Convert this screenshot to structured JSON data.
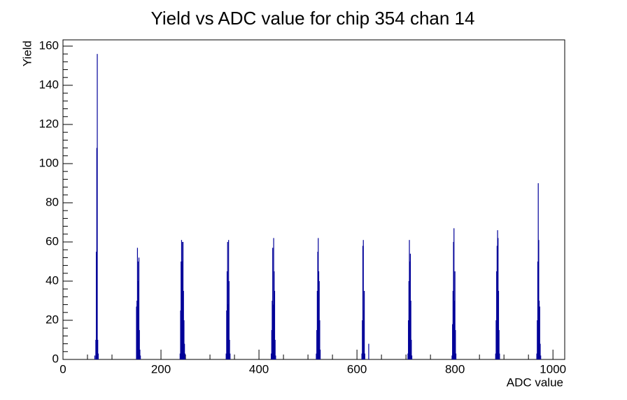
{
  "chart_data": {
    "type": "histogram",
    "title": "Yield vs ADC value for chip 354 chan 14",
    "x_label": "ADC value",
    "y_label": "Yield",
    "color": "#000099",
    "xlim": [
      0,
      1024
    ],
    "ylim": [
      0,
      163.2
    ],
    "xticks": [
      0,
      200,
      400,
      600,
      800,
      1000
    ],
    "yticks": [
      0,
      20,
      40,
      60,
      80,
      100,
      120,
      140,
      160
    ],
    "x": [
      65,
      67,
      68,
      69,
      70,
      71,
      72,
      150,
      151,
      152,
      153,
      154,
      155,
      156,
      157,
      158,
      239,
      240,
      241,
      242,
      243,
      244,
      245,
      246,
      247,
      248,
      249,
      333,
      334,
      335,
      336,
      337,
      338,
      339,
      340,
      341,
      425,
      426,
      427,
      428,
      429,
      430,
      431,
      432,
      433,
      434,
      517,
      518,
      519,
      520,
      521,
      522,
      523,
      524,
      525,
      610,
      611,
      612,
      613,
      614,
      615,
      616,
      624,
      704,
      705,
      706,
      707,
      708,
      709,
      710,
      711,
      712,
      794,
      795,
      796,
      797,
      798,
      799,
      800,
      801,
      802,
      883,
      884,
      885,
      886,
      887,
      888,
      889,
      890,
      891,
      967,
      968,
      969,
      970,
      971,
      972,
      973,
      974,
      975
    ],
    "values": [
      2,
      10,
      55,
      108,
      156,
      10,
      3,
      27,
      30,
      57,
      40,
      50,
      52,
      15,
      5,
      2,
      3,
      25,
      50,
      61,
      60,
      50,
      60,
      35,
      20,
      8,
      3,
      3,
      25,
      45,
      60,
      28,
      61,
      40,
      10,
      3,
      3,
      15,
      30,
      57,
      28,
      62,
      45,
      35,
      10,
      2,
      3,
      15,
      35,
      55,
      62,
      45,
      40,
      20,
      5,
      3,
      20,
      58,
      61,
      25,
      35,
      3,
      8,
      3,
      20,
      40,
      61,
      50,
      54,
      30,
      10,
      2,
      2,
      18,
      35,
      60,
      67,
      30,
      45,
      15,
      3,
      3,
      20,
      45,
      58,
      66,
      62,
      35,
      15,
      3,
      3,
      20,
      50,
      90,
      61,
      30,
      27,
      8,
      2
    ]
  }
}
